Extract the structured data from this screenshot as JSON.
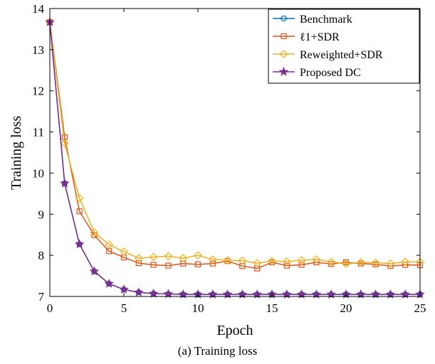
{
  "chart_data": {
    "type": "line",
    "xlabel": "Epoch",
    "ylabel": "Training loss",
    "xlim": [
      0,
      25
    ],
    "ylim": [
      7,
      14
    ],
    "xticks": [
      "0",
      "5",
      "10",
      "15",
      "20",
      "25"
    ],
    "yticks": [
      "7",
      "8",
      "9",
      "10",
      "11",
      "12",
      "13",
      "14"
    ],
    "grid": false,
    "legend_position": "top-right",
    "x": [
      0,
      1,
      2,
      3,
      4,
      5,
      6,
      7,
      8,
      9,
      10,
      11,
      12,
      13,
      14,
      15,
      16,
      17,
      18,
      19,
      20,
      21,
      22,
      23,
      24,
      25
    ],
    "series": [
      {
        "name": "Benchmark",
        "marker": "circle",
        "color": "#0072BD",
        "values": [
          13.67,
          9.75,
          8.27,
          7.61,
          7.31,
          7.17,
          7.1,
          7.07,
          7.06,
          7.05,
          7.05,
          7.05,
          7.05,
          7.05,
          7.05,
          7.05,
          7.05,
          7.05,
          7.05,
          7.05,
          7.05,
          7.05,
          7.05,
          7.05,
          7.05,
          7.05
        ]
      },
      {
        "name": "ℓ1+SDR",
        "marker": "square",
        "color": "#D95319",
        "values": [
          13.67,
          10.87,
          9.07,
          8.49,
          8.1,
          7.95,
          7.81,
          7.77,
          7.75,
          7.8,
          7.78,
          7.8,
          7.86,
          7.74,
          7.68,
          7.83,
          7.75,
          7.77,
          7.83,
          7.79,
          7.83,
          7.8,
          7.78,
          7.74,
          7.77,
          7.76
        ]
      },
      {
        "name": "Reweighted+SDR",
        "marker": "diamond",
        "color": "#EDB120",
        "values": [
          13.67,
          10.72,
          9.39,
          8.56,
          8.26,
          8.09,
          7.93,
          7.96,
          7.98,
          7.93,
          8.0,
          7.9,
          7.88,
          7.87,
          7.81,
          7.86,
          7.85,
          7.88,
          7.9,
          7.84,
          7.79,
          7.83,
          7.82,
          7.8,
          7.84,
          7.84
        ]
      },
      {
        "name": "Proposed DC",
        "marker": "star",
        "color": "#7E2F8E",
        "values": [
          13.67,
          9.75,
          8.27,
          7.61,
          7.31,
          7.17,
          7.1,
          7.07,
          7.06,
          7.05,
          7.05,
          7.05,
          7.05,
          7.05,
          7.05,
          7.05,
          7.05,
          7.05,
          7.05,
          7.05,
          7.05,
          7.05,
          7.05,
          7.05,
          7.05,
          7.05
        ]
      }
    ],
    "caption": "(a) Training loss"
  }
}
